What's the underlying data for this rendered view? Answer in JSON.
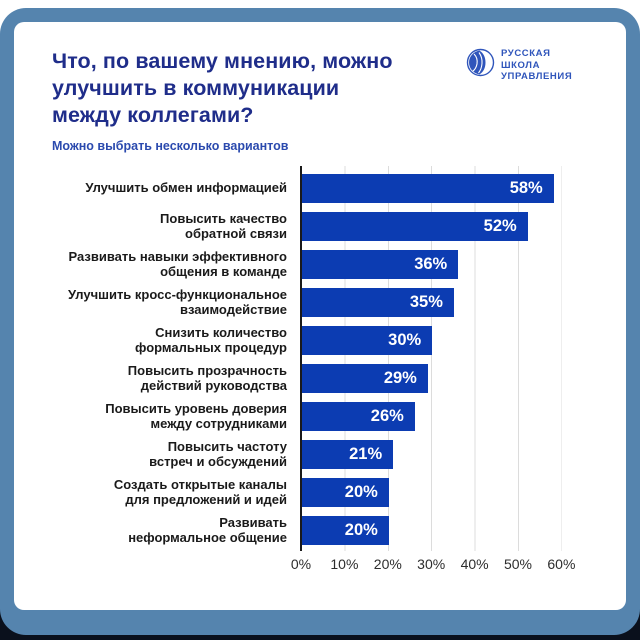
{
  "header": {
    "title": "Что, по вашему мнению, можно\nулучшить в коммуникации\nмежду коллегами?",
    "subtitle": "Можно выбрать несколько вариантов"
  },
  "logo": {
    "icon": "globe-icon",
    "lines": [
      "РУССКАЯ",
      "ШКОЛА",
      "УПРАВЛЕНИЯ"
    ]
  },
  "colors": {
    "bar": "#0c3cb2",
    "title": "#1f2d8a",
    "frame": "#5584ae",
    "backdrop": "#0a101c",
    "grid": "#dcdcdc",
    "axis": "#1a1a1a",
    "logo_blue": "#2f55bb"
  },
  "chart_data": {
    "type": "bar",
    "orientation": "horizontal",
    "title": "Что, по вашему мнению, можно улучшить в коммуникации между коллегами?",
    "subtitle": "Можно выбрать несколько вариантов",
    "categories": [
      "Улучшить обмен информацией",
      "Повысить качество\nобратной связи",
      "Развивать навыки эффективного\nобщения в команде",
      "Улучшить кросс-функциональное\nвзаимодействие",
      "Снизить количество\nформальных процедур",
      "Повысить прозрачность\nдействий руководства",
      "Повысить уровень доверия\nмежду сотрудниками",
      "Повысить частоту\nвстреч и обсуждений",
      "Создать открытые каналы\nдля предложений и идей",
      "Развивать\nнеформальное общение"
    ],
    "values": [
      58,
      52,
      36,
      35,
      30,
      29,
      26,
      21,
      20,
      20
    ],
    "value_suffix": "%",
    "xlabel": "",
    "ylabel": "",
    "xlim": [
      0,
      60
    ],
    "x_ticks": [
      "0%",
      "10%",
      "20%",
      "30%",
      "40%",
      "50%",
      "60%"
    ],
    "grid": true,
    "legend": false,
    "bar_color": "#0c3cb2"
  }
}
